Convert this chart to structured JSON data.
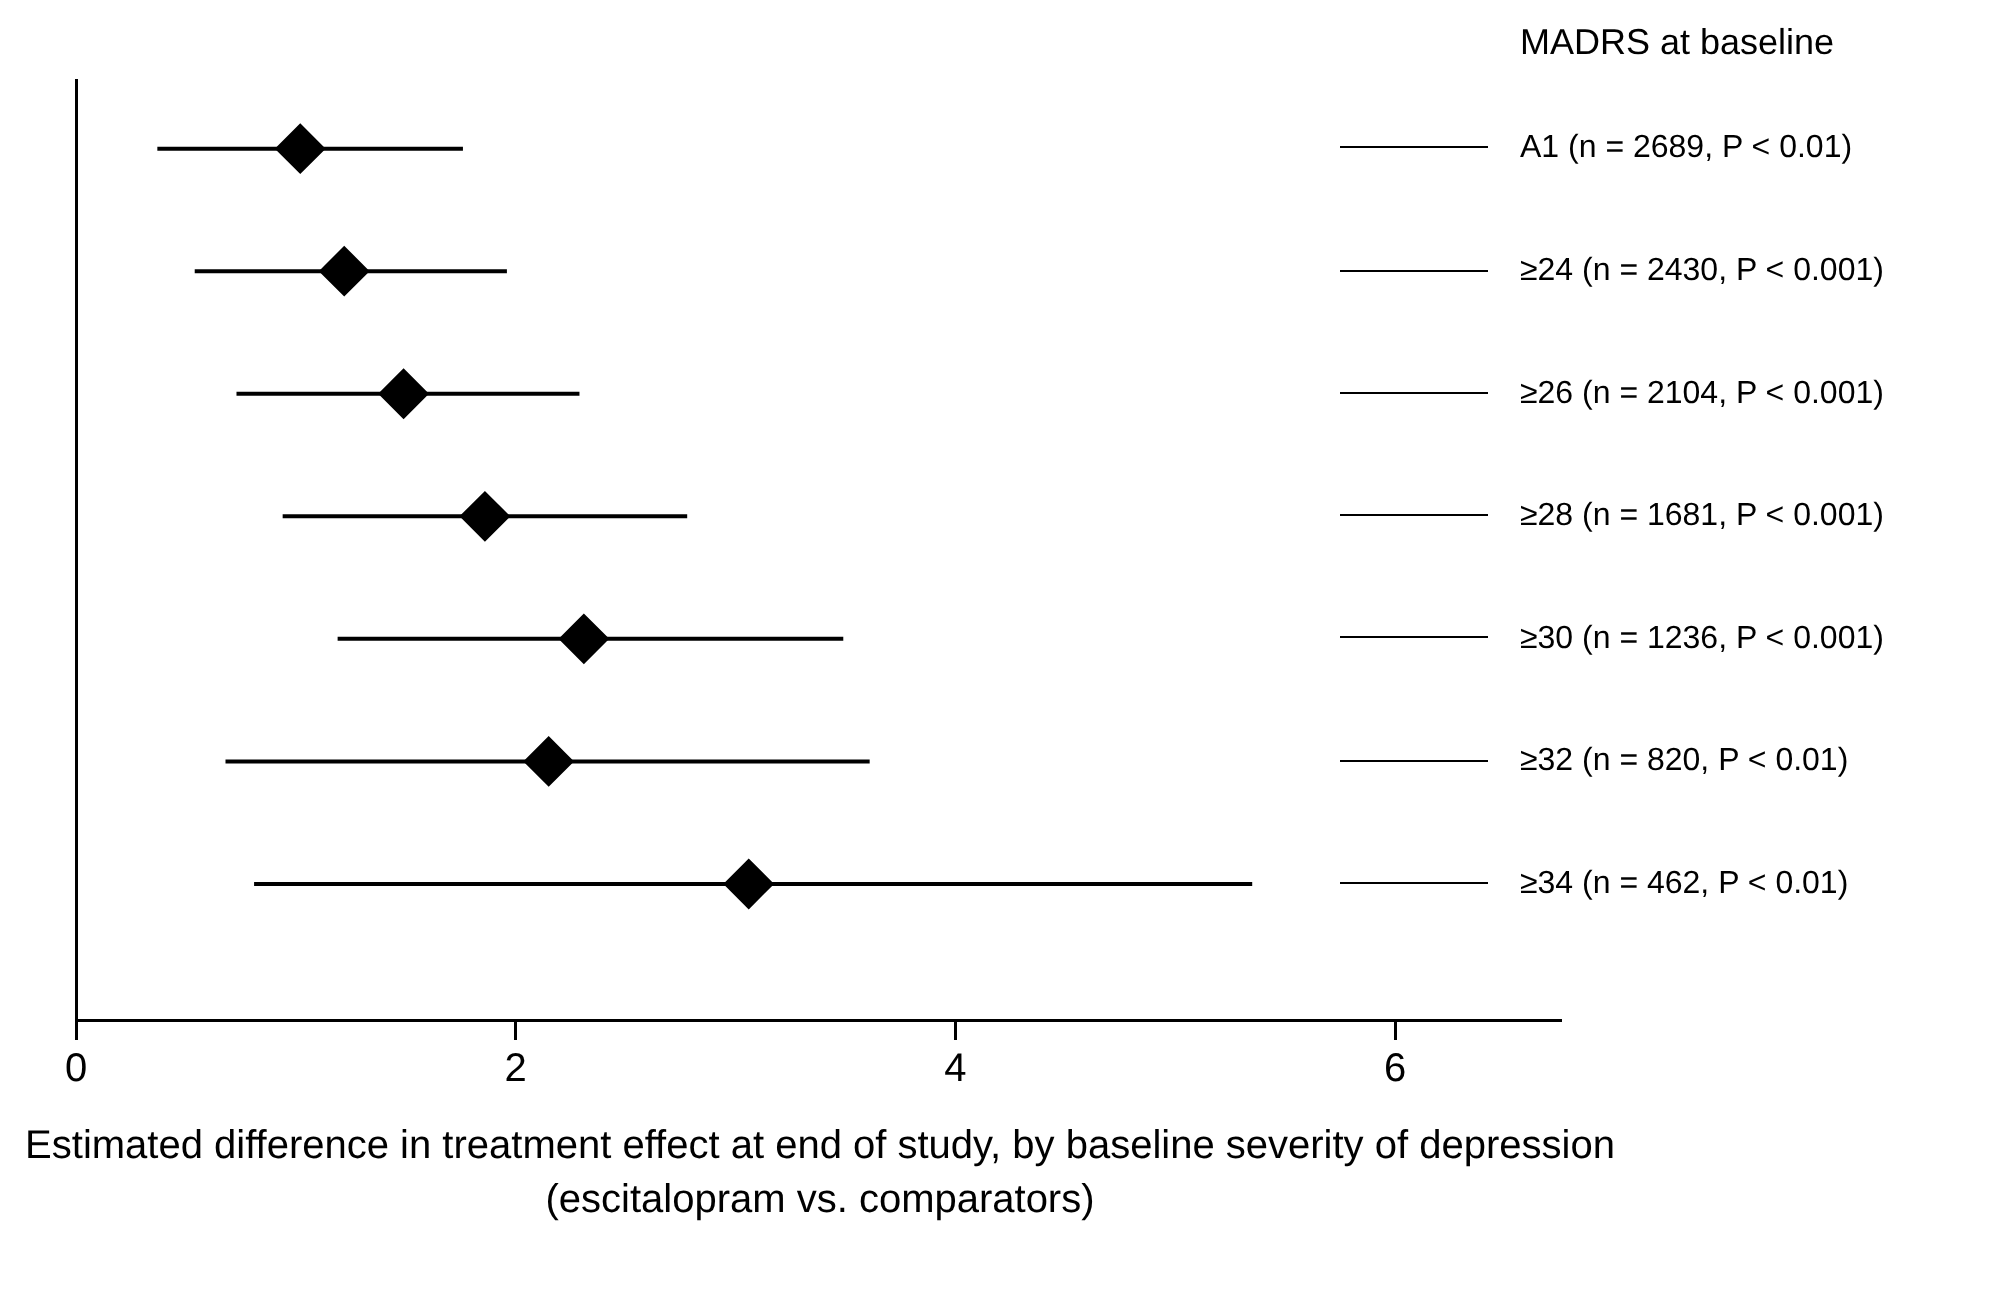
{
  "chart_data": {
    "type": "scatter",
    "orientation": "horizontal",
    "ylabel": "MADRS at baseline",
    "xlabel": "Estimated difference in treatment effect at end of study, by baseline severity of depression (escitalopram vs. comparators)",
    "categories": [
      "A1 (n = 2689, P < 0.01)",
      "≥24 (n = 2430, P < 0.001)",
      "≥26 (n = 2104, P < 0.001)",
      "≥28 (n = 1681, P < 0.001)",
      "≥30 (n = 1236, P < 0.001)",
      "≥32 (n = 820, P < 0.01)",
      "≥34 (n = 462, P < 0.01)"
    ],
    "values": [
      1.02,
      1.22,
      1.49,
      1.86,
      2.31,
      2.15,
      3.06
    ],
    "errors": [
      [
        0.37,
        1.76
      ],
      [
        0.54,
        1.96
      ],
      [
        0.73,
        2.29
      ],
      [
        0.94,
        2.78
      ],
      [
        1.19,
        3.49
      ],
      [
        0.68,
        3.61
      ],
      [
        0.81,
        5.35
      ]
    ],
    "color": "#000000",
    "marker": "diamond",
    "xlim": [
      0,
      6.75
    ],
    "xticks": [
      0,
      2,
      4,
      6
    ],
    "grid": false,
    "legend": false
  }
}
